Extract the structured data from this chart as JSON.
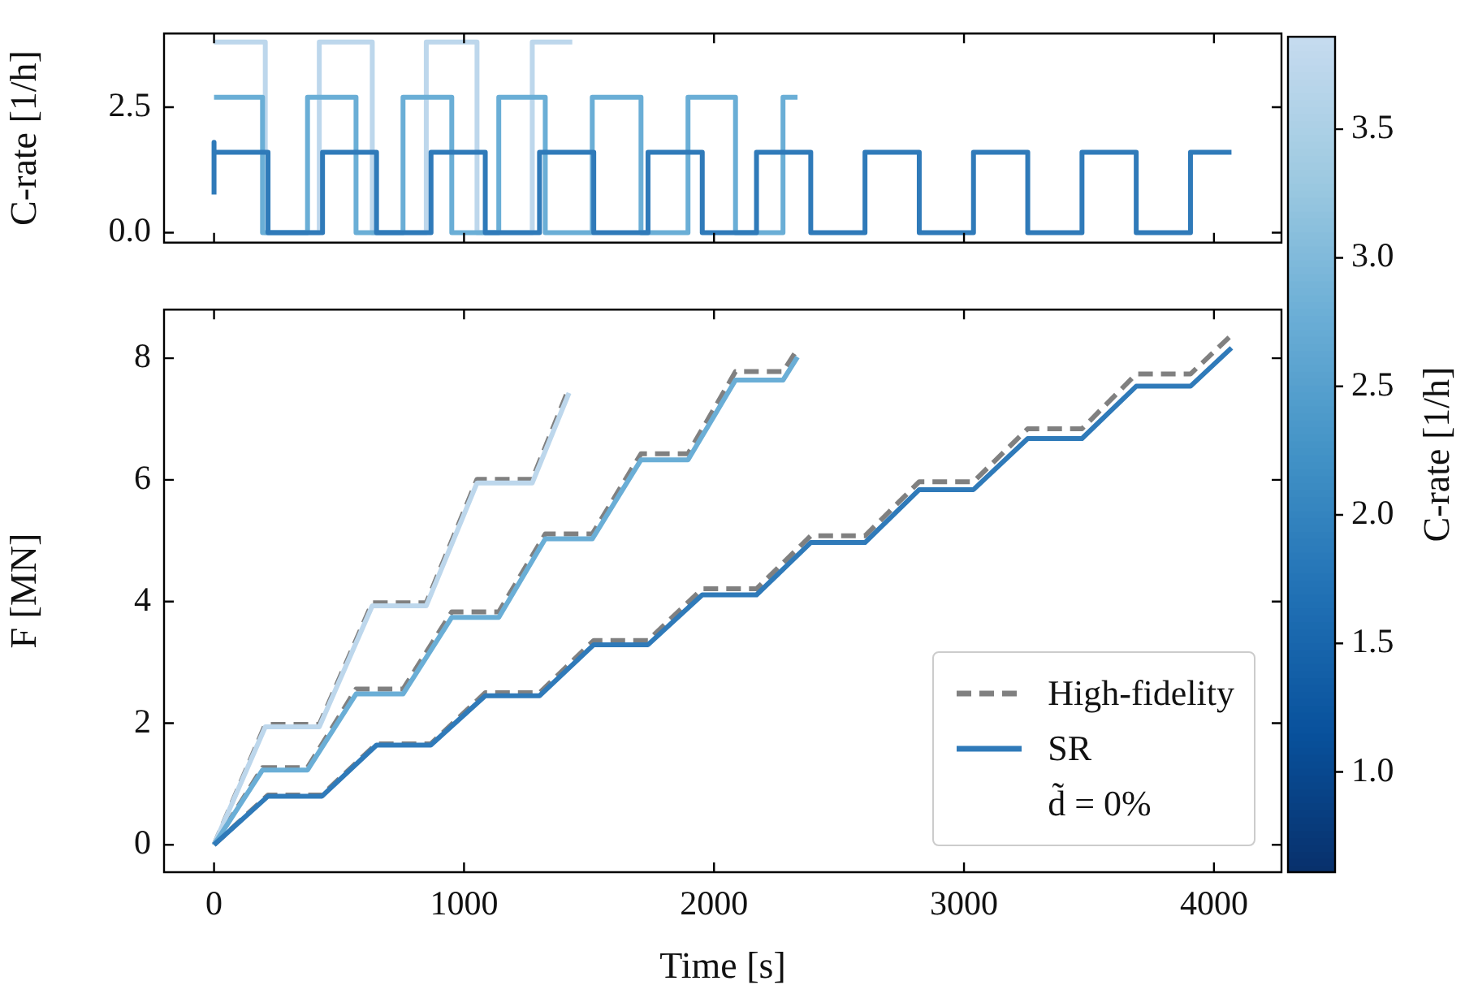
{
  "chart_data": [
    {
      "type": "step",
      "ylabel": "C-rate [1/h]",
      "xlim": [
        -200,
        4270
      ],
      "xticks": [
        0,
        1000,
        2000,
        3000,
        4000
      ],
      "ylim": [
        -0.2,
        3.97
      ],
      "yticks": [
        {
          "value": 0,
          "label": "0.0"
        },
        {
          "value": 2.5,
          "label": "2.5"
        }
      ],
      "tick_labels": "y",
      "series": [
        {
          "color": "#2f7ab9",
          "x": [
            0,
            0,
            0,
            216,
            434,
            650,
            868,
            1085,
            1302,
            1519,
            1736,
            1953,
            2170,
            2387,
            2604,
            2821,
            3038,
            3255,
            3472,
            3689,
            3906,
            4070
          ],
          "values": [
            0.76,
            1.8,
            1.6,
            0,
            1.6,
            0,
            1.6,
            0,
            1.6,
            0,
            1.6,
            0,
            1.6,
            0,
            1.6,
            0,
            1.6,
            0,
            1.6,
            0,
            1.6,
            1.6
          ]
        },
        {
          "color": "#6aaed6",
          "x": [
            0,
            194,
            374,
            568,
            756,
            951,
            1139,
            1325,
            1513,
            1708,
            1896,
            2086,
            2276,
            2334
          ],
          "values": [
            2.7,
            0,
            2.7,
            0,
            2.7,
            0,
            2.7,
            0,
            2.7,
            0,
            2.7,
            0,
            2.7,
            2.7
          ]
        },
        {
          "color": "#bdd7ec",
          "x": [
            0,
            205,
            421,
            633,
            849,
            1052,
            1273,
            1433
          ],
          "values": [
            3.8,
            0,
            3.8,
            0,
            3.8,
            0,
            3.8,
            3.8
          ]
        }
      ]
    },
    {
      "type": "line",
      "xlabel": "Time [s]",
      "ylabel": "F [MN]",
      "xlim": [
        -200,
        4270
      ],
      "xticks": [
        0,
        1000,
        2000,
        3000,
        4000
      ],
      "ylim": [
        -0.45,
        8.8
      ],
      "yticks": [
        0,
        2,
        4,
        6,
        8
      ],
      "legend": "bottom right",
      "annotations": [
        "d̃ = 0%"
      ],
      "clabel": "C-rate [1/h]",
      "clim": [
        0.61,
        3.86
      ],
      "cticks": [
        {
          "value": 1,
          "label": "1.0"
        },
        {
          "value": 1.5,
          "label": "1.5"
        },
        {
          "value": 2,
          "label": "2.0"
        },
        {
          "value": 2.5,
          "label": "2.5"
        },
        {
          "value": 3,
          "label": "3.0"
        },
        {
          "value": 3.5,
          "label": "3.5"
        }
      ],
      "series": [
        {
          "name": "High-fidelity",
          "color": "#808080",
          "line_style": "dashed",
          "x": [
            0,
            216,
            432,
            650,
            867,
            1085,
            1302,
            1519,
            1736,
            1953,
            2170,
            2387,
            2604,
            2821,
            3038,
            3255,
            3472,
            3689,
            3906,
            4070
          ],
          "values": [
            0,
            0.82,
            0.82,
            1.66,
            1.66,
            2.5,
            2.5,
            3.36,
            3.36,
            4.21,
            4.21,
            5.08,
            5.08,
            5.97,
            5.97,
            6.84,
            6.84,
            7.74,
            7.74,
            8.38
          ]
        },
        {
          "color": "#808080",
          "line_style": "dashed",
          "x": [
            0,
            194,
            374,
            568,
            756,
            951,
            1139,
            1325,
            1513,
            1708,
            1896,
            2086,
            2276,
            2334
          ],
          "values": [
            0,
            1.27,
            1.27,
            2.56,
            2.56,
            3.83,
            3.83,
            5.11,
            5.11,
            6.43,
            6.43,
            7.78,
            7.78,
            8.15
          ]
        },
        {
          "color": "#808080",
          "line_style": "dashed",
          "x": [
            0,
            205,
            421,
            633,
            849,
            1052,
            1273,
            1420
          ],
          "values": [
            0,
            1.98,
            1.98,
            3.98,
            3.98,
            6.01,
            6.01,
            7.51
          ]
        },
        {
          "name": "SR",
          "color": "#2f7ab9",
          "line_style": "solid",
          "x": [
            0,
            216,
            432,
            650,
            867,
            1085,
            1302,
            1519,
            1736,
            1953,
            2170,
            2387,
            2604,
            2821,
            3038,
            3255,
            3472,
            3689,
            3906,
            4070
          ],
          "values": [
            0,
            0.8,
            0.8,
            1.64,
            1.64,
            2.45,
            2.45,
            3.29,
            3.29,
            4.11,
            4.11,
            4.97,
            4.97,
            5.84,
            5.84,
            6.68,
            6.68,
            7.54,
            7.54,
            8.17
          ]
        },
        {
          "color": "#6aaed6",
          "line_style": "solid",
          "x": [
            0,
            194,
            374,
            568,
            756,
            951,
            1139,
            1325,
            1513,
            1708,
            1896,
            2086,
            2276,
            2334
          ],
          "values": [
            0,
            1.23,
            1.23,
            2.48,
            2.48,
            3.74,
            3.74,
            5.03,
            5.03,
            6.33,
            6.33,
            7.64,
            7.64,
            8.02
          ]
        },
        {
          "color": "#bdd7ec",
          "line_style": "solid",
          "x": [
            0,
            205,
            421,
            633,
            849,
            1052,
            1273,
            1420
          ],
          "values": [
            0,
            1.94,
            1.94,
            3.93,
            3.93,
            5.95,
            5.95,
            7.43
          ]
        }
      ]
    }
  ]
}
